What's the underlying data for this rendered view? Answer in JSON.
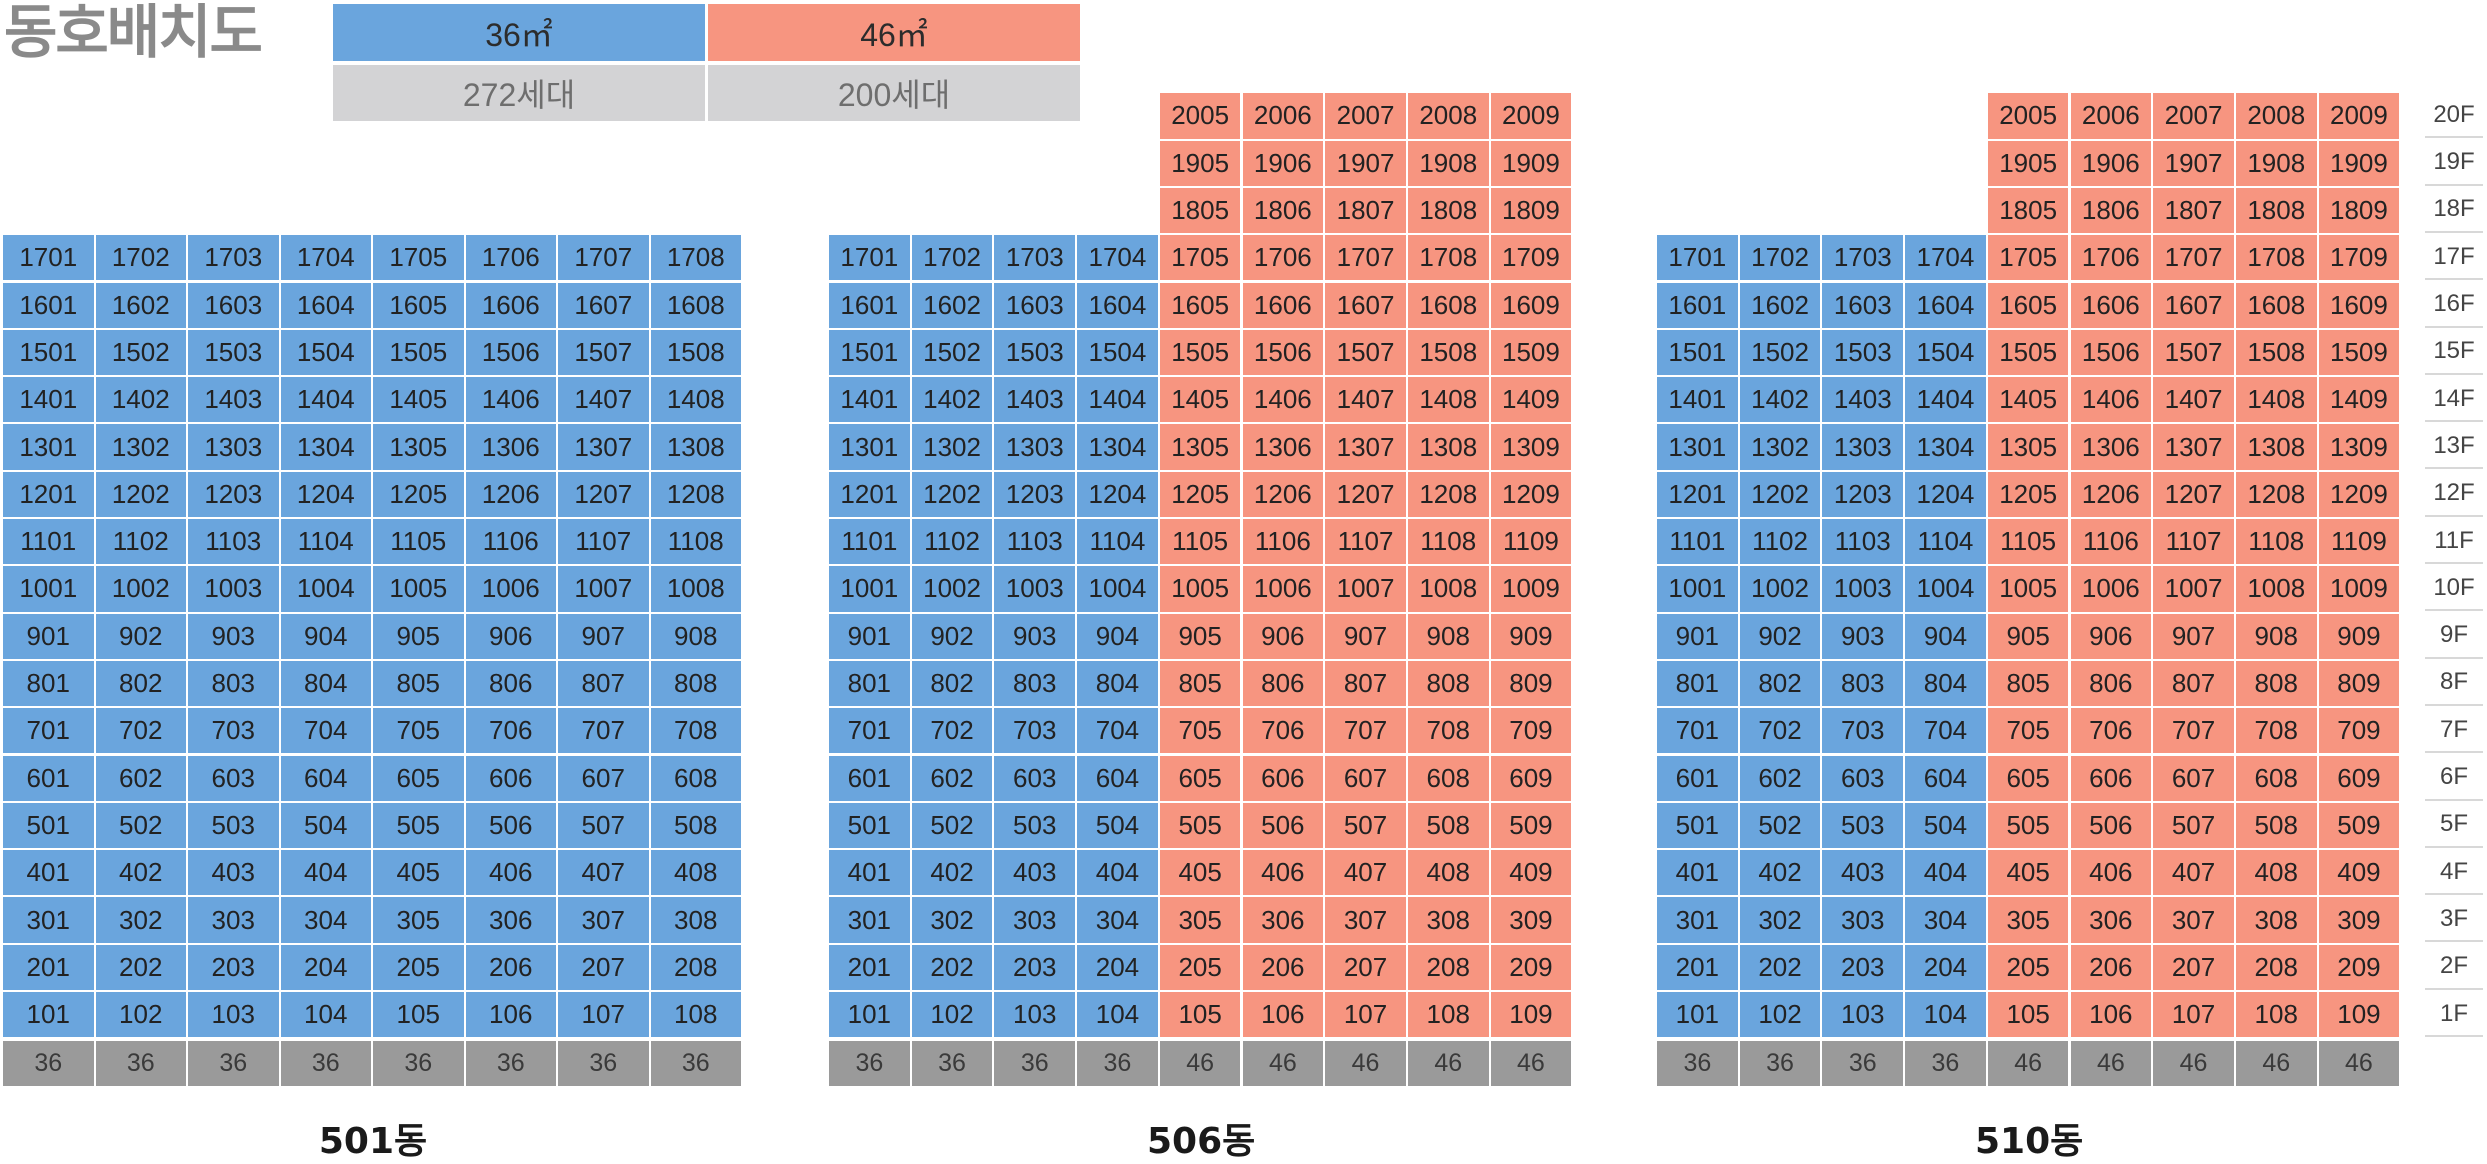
{
  "title": "동호배치도",
  "legend": {
    "types": [
      {
        "label": "36㎡",
        "count": "272세대",
        "color": "#6aa5dd"
      },
      {
        "label": "46㎡",
        "count": "200세대",
        "color": "#f79580"
      }
    ]
  },
  "buildings": [
    {
      "name": "501동",
      "floors": 17,
      "units": 8,
      "types": [
        "36",
        "36",
        "36",
        "36",
        "36",
        "36",
        "36",
        "36"
      ],
      "top_floors": 17
    },
    {
      "name": "506동",
      "floors": 20,
      "units": 9,
      "types": [
        "36",
        "36",
        "36",
        "36",
        "46",
        "46",
        "46",
        "46",
        "46"
      ],
      "top_floors_by_col": [
        17,
        17,
        17,
        17,
        20,
        20,
        20,
        20,
        20
      ]
    },
    {
      "name": "510동",
      "floors": 20,
      "units": 9,
      "types": [
        "36",
        "36",
        "36",
        "36",
        "46",
        "46",
        "46",
        "46",
        "46"
      ],
      "top_floors_by_col": [
        17,
        17,
        17,
        17,
        20,
        20,
        20,
        20,
        20
      ]
    }
  ],
  "floor_labels": [
    "20F",
    "19F",
    "18F",
    "17F",
    "16F",
    "15F",
    "14F",
    "13F",
    "12F",
    "11F",
    "10F",
    "9F",
    "8F",
    "7F",
    "6F",
    "5F",
    "4F",
    "3F",
    "2F",
    "1F"
  ]
}
